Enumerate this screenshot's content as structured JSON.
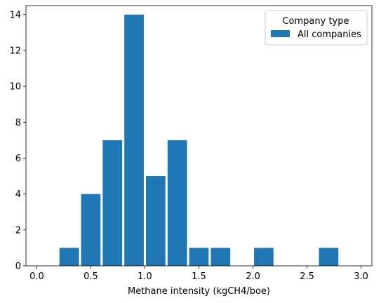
{
  "chart_data": {
    "type": "bar",
    "xlabel": "Methane intensity (kgCH4/boe)",
    "ylabel": "",
    "xlim": [
      -0.1,
      3.1
    ],
    "ylim": [
      0,
      14.5
    ],
    "xticks": [
      "0.0",
      "0.5",
      "1.0",
      "1.5",
      "2.0",
      "2.5",
      "3.0"
    ],
    "yticks": [
      "0",
      "2",
      "4",
      "6",
      "8",
      "10",
      "12",
      "14"
    ],
    "bin_width": 0.2,
    "bin_starts": [
      0.0,
      0.2,
      0.4,
      0.6,
      0.8,
      1.0,
      1.2,
      1.4,
      1.6,
      1.8,
      2.0,
      2.2,
      2.4,
      2.6,
      2.8
    ],
    "series": [
      {
        "name": "All companies",
        "color": "#1f77b4",
        "values": [
          0,
          1,
          4,
          7,
          14,
          5,
          7,
          1,
          1,
          0,
          1,
          0,
          0,
          1,
          0
        ]
      }
    ],
    "legend": {
      "title": "Company type",
      "position": "top-right"
    },
    "grid": false
  }
}
